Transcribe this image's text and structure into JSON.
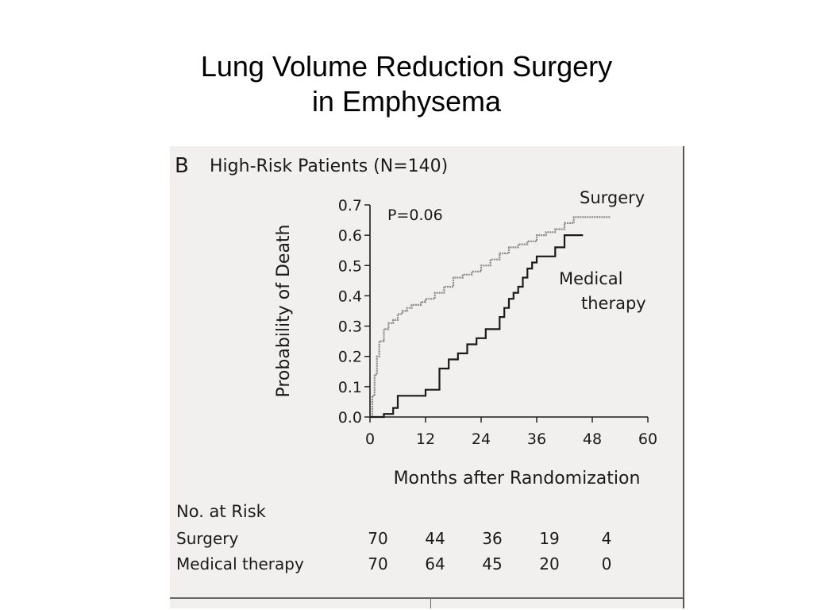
{
  "slide": {
    "title_line1": "Lung Volume Reduction Surgery",
    "title_line2": "in Emphysema"
  },
  "panel": {
    "letter": "B",
    "title": "High-Risk Patients (N=140)",
    "p_value": "P=0.06"
  },
  "colors": {
    "background": "#ffffff",
    "figure_background": "#f1f0ee",
    "surgery_line": "#8a8a8a",
    "medical_line": "#1a1a1a"
  },
  "risk_table": {
    "heading": "No. at Risk",
    "rows": [
      {
        "label": "Surgery",
        "values": [
          "70",
          "44",
          "36",
          "19",
          "4"
        ]
      },
      {
        "label": "Medical therapy",
        "values": [
          "70",
          "64",
          "45",
          "20",
          "0"
        ]
      }
    ]
  },
  "chart_data": {
    "type": "line",
    "subtype": "step (Kaplan-Meier)",
    "title": "High-Risk Patients (N=140)",
    "xlabel": "Months after Randomization",
    "ylabel": "Probability of Death",
    "xlim": [
      0,
      60
    ],
    "ylim": [
      0,
      0.7
    ],
    "xticks": [
      0,
      12,
      24,
      36,
      48,
      60
    ],
    "xtick_labels": [
      "0",
      "12",
      "24",
      "36",
      "48",
      "60"
    ],
    "yticks": [
      0.0,
      0.1,
      0.2,
      0.3,
      0.4,
      0.5,
      0.6,
      0.7
    ],
    "ytick_labels": [
      "0.0",
      "0.1",
      "0.2",
      "0.3",
      "0.4",
      "0.5",
      "0.6",
      "0.7"
    ],
    "grid": false,
    "annotations": [
      "P=0.06"
    ],
    "series": [
      {
        "name": "Surgery",
        "label_lines": [
          "Surgery"
        ],
        "color": "#8a8a8a",
        "x": [
          0,
          0.5,
          1,
          1.5,
          2,
          3,
          4,
          5,
          6,
          7,
          8,
          9,
          10,
          11,
          12,
          14,
          16,
          18,
          20,
          22,
          24,
          26,
          28,
          30,
          32,
          34,
          36,
          38,
          40,
          42,
          44,
          46,
          48,
          52
        ],
        "y": [
          0,
          0.07,
          0.14,
          0.2,
          0.25,
          0.29,
          0.31,
          0.32,
          0.34,
          0.35,
          0.36,
          0.37,
          0.37,
          0.38,
          0.39,
          0.41,
          0.43,
          0.46,
          0.47,
          0.48,
          0.5,
          0.52,
          0.54,
          0.56,
          0.57,
          0.58,
          0.6,
          0.61,
          0.62,
          0.64,
          0.66,
          0.66,
          0.66,
          0.66
        ]
      },
      {
        "name": "Medical therapy",
        "label_lines": [
          "Medical",
          "therapy"
        ],
        "color": "#1a1a1a",
        "x": [
          0,
          2,
          3,
          5,
          6,
          8,
          12,
          14,
          15,
          17,
          19,
          21,
          23,
          25,
          27,
          28,
          29,
          30,
          31,
          32,
          33,
          34,
          35,
          36,
          38,
          40,
          42,
          44,
          46
        ],
        "y": [
          0,
          0,
          0.01,
          0.03,
          0.07,
          0.07,
          0.09,
          0.09,
          0.16,
          0.19,
          0.21,
          0.24,
          0.26,
          0.29,
          0.29,
          0.33,
          0.36,
          0.39,
          0.41,
          0.43,
          0.46,
          0.49,
          0.51,
          0.53,
          0.53,
          0.56,
          0.6,
          0.6,
          0.6
        ]
      }
    ]
  }
}
